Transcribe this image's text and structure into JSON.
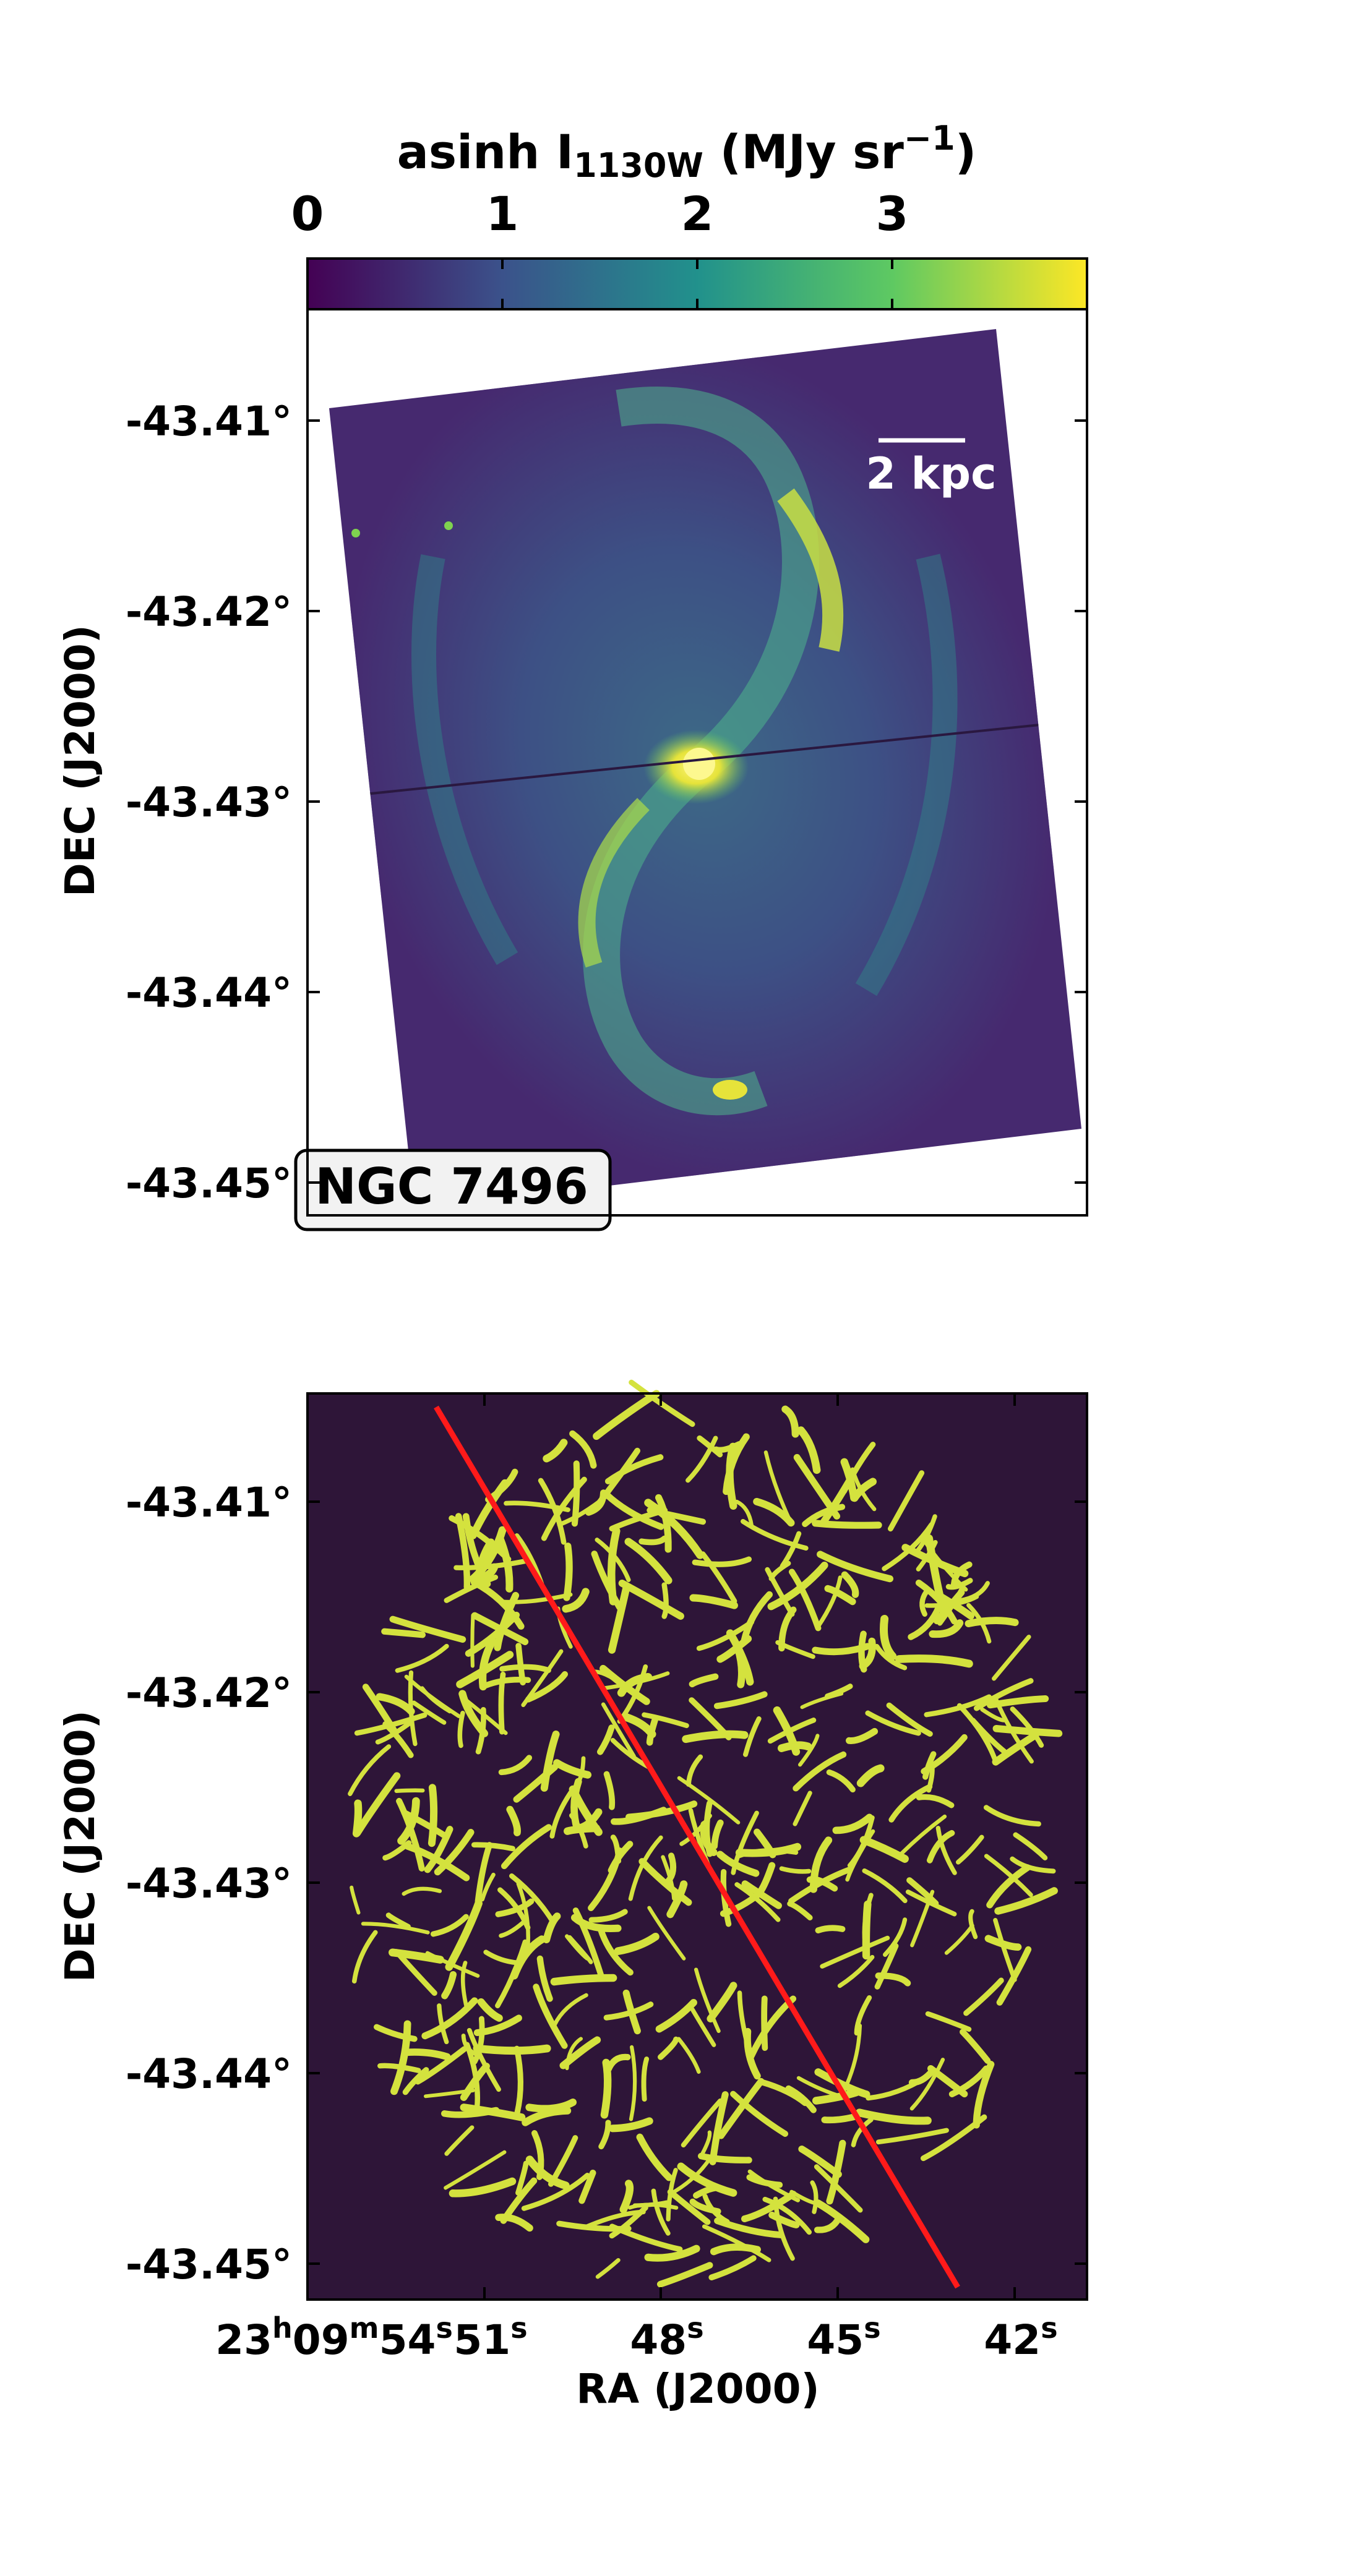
{
  "colorbar": {
    "label_prefix": "asinh I",
    "label_sub": "1130W",
    "label_units_pre": " (MJy sr",
    "label_units_sup": "−1",
    "label_units_post": ")",
    "ticks": [
      "0",
      "1",
      "2",
      "3"
    ],
    "tick_values": [
      0,
      1,
      2,
      3
    ],
    "range": [
      0,
      4.0
    ],
    "colormap": [
      "#440154",
      "#3b528b",
      "#21918c",
      "#5ec962",
      "#fde725"
    ]
  },
  "top_panel": {
    "galaxy_name": "NGC 7496",
    "scalebar_label": "2 kpc",
    "ylabel": "DEC (J2000)",
    "yticks": [
      "-43.41°",
      "-43.42°",
      "-43.43°",
      "-43.44°",
      "-43.45°"
    ],
    "ytick_values": [
      -43.41,
      -43.42,
      -43.43,
      -43.44,
      -43.45
    ]
  },
  "bottom_panel": {
    "ylabel": "DEC (J2000)",
    "xlabel": "RA (J2000)",
    "yticks": [
      "-43.41°",
      "-43.42°",
      "-43.43°",
      "-43.44°",
      "-43.45°"
    ],
    "ytick_values": [
      -43.41,
      -43.42,
      -43.43,
      -43.44,
      -43.45
    ],
    "xtick_first": {
      "h": "23",
      "h_sup": "h",
      "m": "09",
      "m_sup": "m",
      "s": "54",
      "s_sup": "s"
    },
    "xticks_rest": [
      {
        "value": "51",
        "sup": "s"
      },
      {
        "value": "48",
        "sup": "s"
      },
      {
        "value": "45",
        "sup": "s"
      },
      {
        "value": "42",
        "sup": "s"
      }
    ],
    "background_color": "#2e1538",
    "filament_color": "#d4e23e",
    "line_color": "#ff1a1a"
  }
}
